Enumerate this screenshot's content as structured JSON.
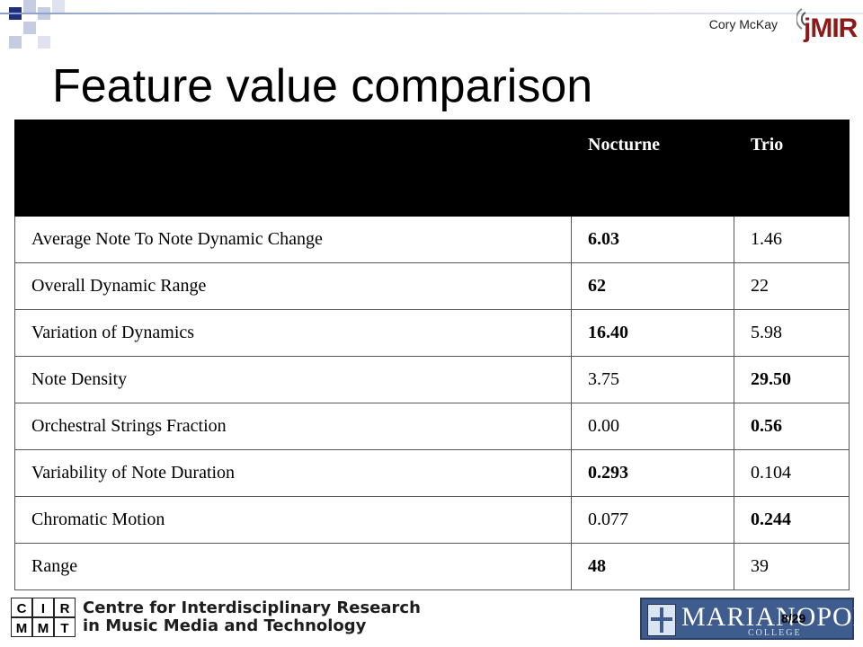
{
  "header": {
    "author": "Cory McKay",
    "logo_text": "jMIR",
    "title": "Feature value comparison"
  },
  "table": {
    "columns": [
      "",
      "Nocturne",
      "Trio"
    ],
    "rows": [
      {
        "feature": "Average Note To Note Dynamic Change",
        "nocturne": "6.03",
        "trio": "1.46",
        "bold": "nocturne"
      },
      {
        "feature": "Overall Dynamic Range",
        "nocturne": "62",
        "trio": "22",
        "bold": "nocturne"
      },
      {
        "feature": "Variation of Dynamics",
        "nocturne": "16.40",
        "trio": "5.98",
        "bold": "nocturne"
      },
      {
        "feature": "Note Density",
        "nocturne": "3.75",
        "trio": "29.50",
        "bold": "trio"
      },
      {
        "feature": "Orchestral Strings Fraction",
        "nocturne": "0.00",
        "trio": "0.56",
        "bold": "trio"
      },
      {
        "feature": "Variability of Note Duration",
        "nocturne": "0.293",
        "trio": "0.104",
        "bold": "nocturne"
      },
      {
        "feature": "Chromatic Motion",
        "nocturne": "0.077",
        "trio": "0.244",
        "bold": "trio"
      },
      {
        "feature": "Range",
        "nocturne": "48",
        "trio": "39",
        "bold": "nocturne"
      }
    ]
  },
  "footer": {
    "cirmmt_letters": [
      "C",
      "I",
      "R",
      "M",
      "M",
      "T"
    ],
    "cirmmt_line1": "Centre for Interdisciplinary Research",
    "cirmmt_line2": "in Music Media and Technology",
    "college_name": "MARIANOPOLIS",
    "college_sub": "COLLEGE",
    "slide_number": "8/29"
  },
  "colors": {
    "header_row": "#000000",
    "college_blue": "#3e5c8e",
    "logo_red": "#8b1a1a"
  }
}
